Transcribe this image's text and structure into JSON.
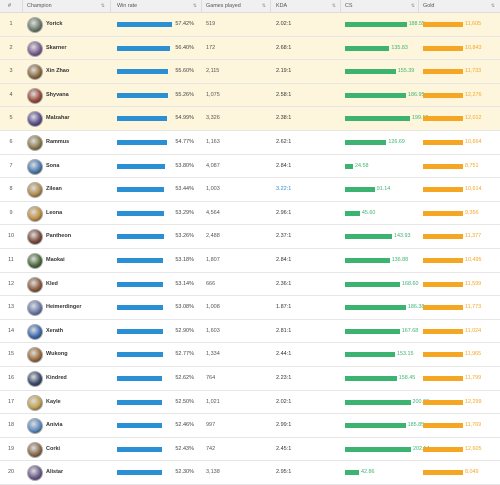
{
  "header": {
    "num": "#",
    "champion": "Champion",
    "win_rate": "Win rate",
    "games_played": "Games played",
    "kda": "KDA",
    "cs": "CS",
    "gold": "Gold"
  },
  "colors": {
    "win_rate_bar": "#2b8fd4",
    "cs_bar": "#3cb371",
    "gold_bar": "#f5a623",
    "top_highlight": "#fdf6dc"
  },
  "rows": [
    {
      "num": "1",
      "name": "Yorick",
      "win_rate": "57.42%",
      "wr": 57.42,
      "games": "519",
      "kda": "2.02:1",
      "cs": "188.55",
      "csv": 188.55,
      "gold": "11,605",
      "goldv": 11605,
      "avatar": "#6b7b6a"
    },
    {
      "num": "2",
      "name": "Skarner",
      "win_rate": "56.40%",
      "wr": 56.4,
      "games": "172",
      "kda": "2.68:1",
      "cs": "135.83",
      "csv": 135.83,
      "gold": "10,843",
      "goldv": 10843,
      "avatar": "#7a5d8f"
    },
    {
      "num": "3",
      "name": "Xin Zhao",
      "win_rate": "55.60%",
      "wr": 55.6,
      "games": "2,115",
      "kda": "2.19:1",
      "cs": "155.39",
      "csv": 155.39,
      "gold": "11,733",
      "goldv": 11733,
      "avatar": "#8a6a3c"
    },
    {
      "num": "4",
      "name": "Shyvana",
      "win_rate": "55.26%",
      "wr": 55.26,
      "games": "1,075",
      "kda": "2.58:1",
      "cs": "186.95",
      "csv": 186.95,
      "gold": "12,276",
      "goldv": 12276,
      "avatar": "#9a4a3a"
    },
    {
      "num": "5",
      "name": "Malzahar",
      "win_rate": "54.99%",
      "wr": 54.99,
      "games": "3,326",
      "kda": "2.38:1",
      "cs": "199.19",
      "csv": 199.19,
      "gold": "12,012",
      "goldv": 12012,
      "avatar": "#5a4e8c"
    },
    {
      "num": "6",
      "name": "Rammus",
      "win_rate": "54.77%",
      "wr": 54.77,
      "games": "1,163",
      "kda": "2.62:1",
      "cs": "126.69",
      "csv": 126.69,
      "gold": "10,664",
      "goldv": 10664,
      "avatar": "#8c7a4a"
    },
    {
      "num": "7",
      "name": "Sona",
      "win_rate": "53.80%",
      "wr": 53.8,
      "games": "4,087",
      "kda": "2.84:1",
      "cs": "24.58",
      "csv": 24.58,
      "gold": "8,751",
      "goldv": 8751,
      "avatar": "#4a7ab0"
    },
    {
      "num": "8",
      "name": "Zilean",
      "win_rate": "53.44%",
      "wr": 53.44,
      "games": "1,003",
      "kda": "3.22:1",
      "kda_blue": true,
      "cs": "91.14",
      "csv": 91.14,
      "gold": "10,614",
      "goldv": 10614,
      "avatar": "#b08a4a"
    },
    {
      "num": "9",
      "name": "Leona",
      "win_rate": "53.29%",
      "wr": 53.29,
      "games": "4,564",
      "kda": "2.96:1",
      "cs": "45.60",
      "csv": 45.6,
      "gold": "9,356",
      "goldv": 9356,
      "avatar": "#c09040"
    },
    {
      "num": "10",
      "name": "Pantheon",
      "win_rate": "53.26%",
      "wr": 53.26,
      "games": "2,488",
      "kda": "2.37:1",
      "cs": "143.93",
      "csv": 143.93,
      "gold": "11,377",
      "goldv": 11377,
      "avatar": "#7a4a3a"
    },
    {
      "num": "11",
      "name": "Maokai",
      "win_rate": "53.18%",
      "wr": 53.18,
      "games": "1,807",
      "kda": "2.84:1",
      "cs": "136.88",
      "csv": 136.88,
      "gold": "10,495",
      "goldv": 10495,
      "avatar": "#4a6a3a"
    },
    {
      "num": "12",
      "name": "Kled",
      "win_rate": "53.14%",
      "wr": 53.14,
      "games": "666",
      "kda": "2.36:1",
      "cs": "168.60",
      "csv": 168.6,
      "gold": "11,599",
      "goldv": 11599,
      "avatar": "#8a5a3a"
    },
    {
      "num": "13",
      "name": "Heimerdinger",
      "win_rate": "53.08%",
      "wr": 53.08,
      "games": "1,008",
      "kda": "1.87:1",
      "cs": "186.38",
      "csv": 186.38,
      "gold": "11,773",
      "goldv": 11773,
      "avatar": "#6a7aaa"
    },
    {
      "num": "14",
      "name": "Xerath",
      "win_rate": "52.90%",
      "wr": 52.9,
      "games": "1,603",
      "kda": "2.81:1",
      "cs": "167.68",
      "csv": 167.68,
      "gold": "11,024",
      "goldv": 11024,
      "avatar": "#3a6ab0"
    },
    {
      "num": "15",
      "name": "Wukong",
      "win_rate": "52.77%",
      "wr": 52.77,
      "games": "1,334",
      "kda": "2.44:1",
      "cs": "153.15",
      "csv": 153.15,
      "gold": "11,965",
      "goldv": 11965,
      "avatar": "#9a6a3a"
    },
    {
      "num": "16",
      "name": "Kindred",
      "win_rate": "52.62%",
      "wr": 52.62,
      "games": "764",
      "kda": "2.23:1",
      "cs": "158.45",
      "csv": 158.45,
      "gold": "11,799",
      "goldv": 11799,
      "avatar": "#3a4a6a"
    },
    {
      "num": "17",
      "name": "Kayle",
      "win_rate": "52.50%",
      "wr": 52.5,
      "games": "1,021",
      "kda": "2.02:1",
      "cs": "200.68",
      "csv": 200.68,
      "gold": "12,299",
      "goldv": 12299,
      "avatar": "#c0a050"
    },
    {
      "num": "18",
      "name": "Anivia",
      "win_rate": "52.46%",
      "wr": 52.46,
      "games": "997",
      "kda": "2.99:1",
      "cs": "185.85",
      "csv": 185.85,
      "gold": "11,769",
      "goldv": 11769,
      "avatar": "#5a8ac0"
    },
    {
      "num": "19",
      "name": "Corki",
      "win_rate": "52.43%",
      "wr": 52.43,
      "games": "742",
      "kda": "2.45:1",
      "cs": "202.14",
      "csv": 202.14,
      "gold": "12,605",
      "goldv": 12605,
      "avatar": "#8a6a4a"
    },
    {
      "num": "20",
      "name": "Alistar",
      "win_rate": "52.30%",
      "wr": 52.3,
      "games": "3,138",
      "kda": "2.95:1",
      "cs": "42.86",
      "csv": 42.86,
      "gold": "8,049",
      "goldv": 8049,
      "avatar": "#6a5a8a"
    }
  ]
}
